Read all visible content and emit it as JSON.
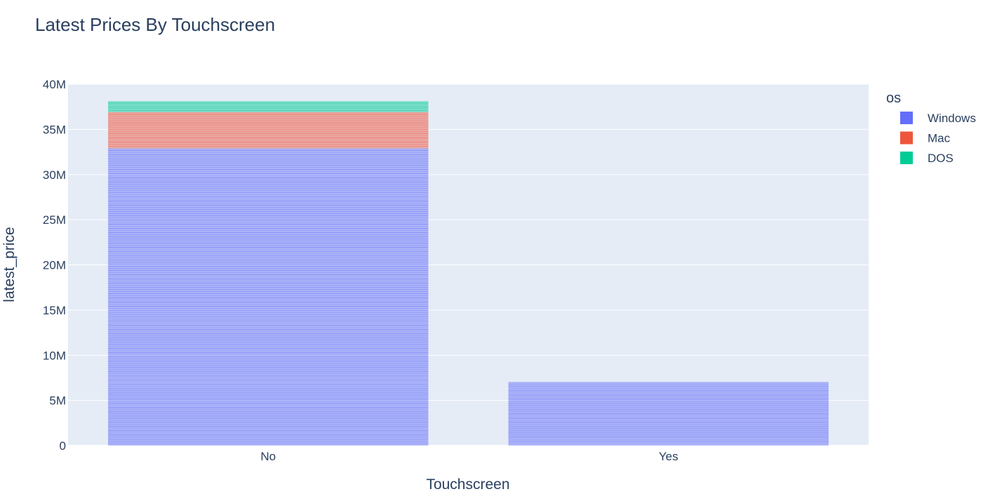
{
  "chart_data": {
    "type": "bar",
    "barmode": "stack",
    "title": "Latest Prices By Touchscreen",
    "xlabel": "Touchscreen",
    "ylabel": "latest_price",
    "categories": [
      "No",
      "Yes"
    ],
    "ylim": [
      0,
      40000000
    ],
    "yticks": [
      0,
      5000000,
      10000000,
      15000000,
      20000000,
      25000000,
      30000000,
      35000000,
      40000000
    ],
    "ytick_labels": [
      "0",
      "5M",
      "10M",
      "15M",
      "20M",
      "25M",
      "30M",
      "35M",
      "40M"
    ],
    "grid": true,
    "legend": {
      "title": "os",
      "position": "top-right"
    },
    "series": [
      {
        "name": "Windows",
        "color": "#636efa",
        "values": [
          32900000,
          7000000
        ]
      },
      {
        "name": "Mac",
        "color": "#ef553b",
        "values": [
          4000000,
          0
        ]
      },
      {
        "name": "DOS",
        "color": "#00cc96",
        "values": [
          1200000,
          0
        ]
      }
    ],
    "colors": {
      "plot_bg": "#e5ecf6",
      "grid": "#ffffff",
      "text": "#2a3f5f"
    }
  }
}
